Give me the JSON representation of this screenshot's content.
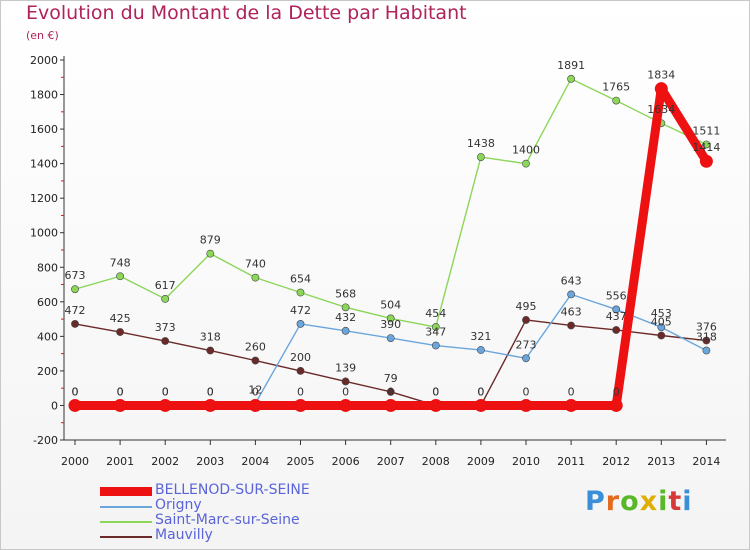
{
  "title": "Evolution du Montant de la Dette par Habitant",
  "subtitle": "(en €)",
  "brand": {
    "text": "Proxiti",
    "letter_colors": [
      "#3a8fd8",
      "#e46a1e",
      "#58b828",
      "#e0b000",
      "#58b828",
      "#d83a3a",
      "#3a8fd8"
    ]
  },
  "chart_data": {
    "type": "line",
    "x": [
      2000,
      2001,
      2002,
      2003,
      2004,
      2005,
      2006,
      2007,
      2008,
      2009,
      2010,
      2011,
      2012,
      2013,
      2014
    ],
    "ylim": [
      -200,
      2000
    ],
    "yticks": [
      -200,
      0,
      200,
      400,
      600,
      800,
      1000,
      1200,
      1400,
      1600,
      1800,
      2000
    ],
    "grid": false,
    "legend_position": "bottom-left",
    "series": [
      {
        "name": "Saint-Marc-sur-Seine",
        "color": "#8cd65a",
        "values": [
          673,
          748,
          617,
          879,
          740,
          654,
          568,
          504,
          454,
          1438,
          1400,
          1891,
          1765,
          1634,
          1511
        ],
        "labels": [
          "673",
          "748",
          "617",
          "879",
          "740",
          "654",
          "568",
          "504",
          "454",
          "1438",
          "1400",
          "1891",
          "1765",
          "1634",
          "1511"
        ]
      },
      {
        "name": "Mauvilly",
        "color": "#6b2a2a",
        "values": [
          472,
          425,
          373,
          318,
          260,
          200,
          139,
          79,
          0,
          0,
          495,
          463,
          437,
          405,
          376
        ],
        "labels": [
          "472",
          "425",
          "373",
          "318",
          "260",
          "200",
          "139",
          "79",
          "0",
          "0",
          "495",
          "463",
          "437",
          "405",
          "376"
        ]
      },
      {
        "name": "Origny",
        "color": "#6aa6dc",
        "values": [
          0,
          0,
          0,
          0,
          12,
          472,
          432,
          390,
          347,
          321,
          273,
          643,
          556,
          453,
          318
        ],
        "labels": [
          "0",
          "0",
          "0",
          "0",
          "12",
          "472",
          "432",
          "390",
          "347",
          "321",
          "273",
          "643",
          "556",
          "453",
          "318"
        ]
      },
      {
        "name": "BELLENOD-SUR-SEINE",
        "color": "#ee1111",
        "values": [
          0,
          0,
          0,
          0,
          0,
          0,
          0,
          0,
          0,
          0,
          0,
          0,
          0,
          1834,
          1414
        ],
        "labels": [
          "0",
          "0",
          "0",
          "0",
          "0",
          "0",
          "0",
          "0",
          "0",
          "0",
          "0",
          "0",
          "0",
          "1834",
          "1414"
        ]
      }
    ],
    "legend_order": [
      "BELLENOD-SUR-SEINE",
      "Origny",
      "Saint-Marc-sur-Seine",
      "Mauvilly"
    ]
  }
}
